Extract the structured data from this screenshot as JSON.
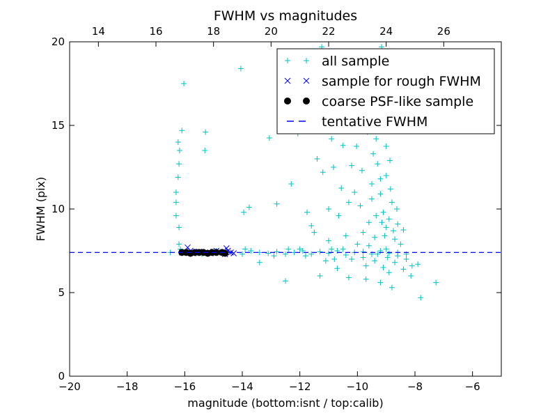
{
  "chart_data": {
    "type": "scatter",
    "title": "FWHM vs magnitudes",
    "xlabel": "magnitude (bottom:isnt / top:calib)",
    "ylabel": "FWHM (pix)",
    "xlim": [
      -20,
      -5
    ],
    "ylim": [
      0,
      20
    ],
    "xticks": [
      "−20",
      "−18",
      "−16",
      "−14",
      "−12",
      "−10",
      "−8",
      "−6"
    ],
    "xtick_values": [
      -20,
      -18,
      -16,
      -14,
      -12,
      -10,
      -8,
      -6
    ],
    "yticks": [
      "0",
      "5",
      "10",
      "15",
      "20"
    ],
    "ytick_values": [
      0,
      5,
      10,
      15,
      20
    ],
    "top_xticks": [
      "14",
      "16",
      "18",
      "20",
      "22",
      "24",
      "26"
    ],
    "top_xtick_values": [
      14,
      16,
      18,
      20,
      22,
      24,
      26
    ],
    "top_axis_offset": 33,
    "grid": false,
    "legend_position": "top-right",
    "tentative_fwhm": 7.4,
    "series": [
      {
        "name": "all sample",
        "marker": "+",
        "color": "#00bfbf",
        "points": [
          [
            -16.03,
            17.5
          ],
          [
            -14.05,
            18.4
          ],
          [
            -15.28,
            14.6
          ],
          [
            -16.1,
            14.7
          ],
          [
            -16.23,
            14.0
          ],
          [
            -16.18,
            13.5
          ],
          [
            -15.3,
            13.5
          ],
          [
            -16.2,
            12.7
          ],
          [
            -16.23,
            11.9
          ],
          [
            -16.3,
            11.0
          ],
          [
            -16.3,
            10.4
          ],
          [
            -16.3,
            9.6
          ],
          [
            -16.2,
            8.9
          ],
          [
            -16.2,
            7.9
          ],
          [
            -16.15,
            7.6
          ],
          [
            -13.06,
            14.25
          ],
          [
            -12.07,
            14.5
          ],
          [
            -12.3,
            11.5
          ],
          [
            -12.8,
            10.3
          ],
          [
            -13.76,
            10.1
          ],
          [
            -13.95,
            9.8
          ],
          [
            -11.75,
            9.8
          ],
          [
            -12.5,
            5.7
          ],
          [
            -11.3,
            6.0
          ],
          [
            -7.8,
            4.7
          ],
          [
            -7.27,
            5.6
          ],
          [
            -13.4,
            6.8
          ],
          [
            -11.24,
            19.7
          ],
          [
            -9.16,
            19.7
          ],
          [
            -9.1,
            18.7
          ],
          [
            -11.2,
            12.2
          ],
          [
            -10.83,
            12.5
          ],
          [
            -10.56,
            11.25
          ],
          [
            -10.3,
            15.0
          ],
          [
            -10.03,
            13.75
          ],
          [
            -9.84,
            12.3
          ],
          [
            -10.3,
            10.4
          ],
          [
            -11.0,
            10.0
          ],
          [
            -10.65,
            9.6
          ],
          [
            -9.6,
            9.2
          ],
          [
            -9.35,
            14.2
          ],
          [
            -9.0,
            13.75
          ],
          [
            -8.87,
            12.9
          ],
          [
            -8.63,
            10.0
          ],
          [
            -8.4,
            8.75
          ],
          [
            -9.2,
            5.6
          ],
          [
            -9.7,
            5.8
          ],
          [
            -10.3,
            5.9
          ],
          [
            -8.14,
            6.0
          ],
          [
            -7.9,
            6.7
          ],
          [
            -10.7,
            6.45
          ],
          [
            -11.5,
            8.6
          ],
          [
            -11.0,
            8.1
          ],
          [
            -10.4,
            8.4
          ],
          [
            -10.1,
            11.0
          ],
          [
            -9.9,
            10.2
          ],
          [
            -9.5,
            11.5
          ],
          [
            -9.3,
            12.7
          ],
          [
            -9.2,
            10.9
          ],
          [
            -9.1,
            9.8
          ],
          [
            -9.0,
            8.9
          ],
          [
            -8.9,
            9.4
          ],
          [
            -8.8,
            10.4
          ],
          [
            -8.7,
            8.2
          ],
          [
            -8.6,
            9.1
          ],
          [
            -8.5,
            7.9
          ],
          [
            -9.4,
            8.3
          ],
          [
            -9.6,
            7.8
          ],
          [
            -9.8,
            8.6
          ],
          [
            -10.0,
            7.9
          ],
          [
            -10.2,
            7.0
          ],
          [
            -9.7,
            6.6
          ],
          [
            -9.4,
            6.9
          ],
          [
            -9.1,
            6.5
          ],
          [
            -8.9,
            6.2
          ],
          [
            -8.7,
            6.8
          ],
          [
            -8.4,
            6.4
          ],
          [
            -8.3,
            7.0
          ],
          [
            -8.1,
            6.6
          ],
          [
            -8.8,
            5.3
          ],
          [
            -9.3,
            7.3
          ],
          [
            -9.0,
            7.6
          ],
          [
            -8.6,
            7.2
          ],
          [
            -9.8,
            7.1
          ],
          [
            -10.5,
            7.6
          ],
          [
            -10.8,
            7.0
          ],
          [
            -11.1,
            6.9
          ],
          [
            -9.5,
            10.6
          ],
          [
            -9.2,
            11.8
          ],
          [
            -9.0,
            12.0
          ],
          [
            -8.85,
            11.2
          ],
          [
            -9.45,
            13.3
          ],
          [
            -9.65,
            14.6
          ],
          [
            -9.25,
            15.3
          ],
          [
            -10.2,
            12.6
          ],
          [
            -10.5,
            13.8
          ],
          [
            -10.9,
            14.2
          ],
          [
            -11.4,
            13.0
          ],
          [
            -11.6,
            9.0
          ],
          [
            -12.0,
            7.6
          ],
          [
            -9.05,
            8.4
          ],
          [
            -8.95,
            7.1
          ],
          [
            -9.15,
            9.2
          ],
          [
            -9.35,
            9.6
          ],
          [
            -8.75,
            8.7
          ],
          [
            -16.5,
            7.4
          ],
          [
            -15.9,
            7.5
          ],
          [
            -15.4,
            7.3
          ],
          [
            -14.9,
            7.5
          ],
          [
            -14.4,
            7.4
          ],
          [
            -14.0,
            7.3
          ],
          [
            -13.7,
            7.5
          ],
          [
            -13.4,
            7.4
          ],
          [
            -13.1,
            7.35
          ],
          [
            -12.8,
            7.45
          ],
          [
            -12.5,
            7.3
          ],
          [
            -12.2,
            7.4
          ],
          [
            -11.9,
            7.5
          ],
          [
            -11.6,
            7.3
          ],
          [
            -11.3,
            7.45
          ],
          [
            -11.0,
            7.35
          ],
          [
            -10.7,
            7.5
          ],
          [
            -10.4,
            7.25
          ],
          [
            -10.1,
            7.4
          ],
          [
            -9.8,
            7.45
          ],
          [
            -9.5,
            7.3
          ],
          [
            -9.2,
            7.5
          ],
          [
            -8.9,
            7.35
          ],
          [
            -8.6,
            7.4
          ],
          [
            -8.3,
            7.3
          ],
          [
            -13.9,
            7.6
          ],
          [
            -12.9,
            7.2
          ],
          [
            -12.4,
            7.6
          ],
          [
            -11.8,
            7.2
          ],
          [
            -10.9,
            7.6
          ]
        ]
      },
      {
        "name": "sample for rough FWHM",
        "marker": "x",
        "color": "#0000ff",
        "points": [
          [
            -16.1,
            7.4
          ],
          [
            -15.9,
            7.7
          ],
          [
            -15.7,
            7.35
          ],
          [
            -15.5,
            7.45
          ],
          [
            -15.3,
            7.4
          ],
          [
            -15.1,
            7.35
          ],
          [
            -14.9,
            7.5
          ],
          [
            -14.7,
            7.4
          ],
          [
            -14.55,
            7.65
          ],
          [
            -14.4,
            7.4
          ],
          [
            -14.3,
            7.35
          ],
          [
            -15.8,
            7.5
          ],
          [
            -15.0,
            7.45
          ],
          [
            -14.6,
            7.3
          ],
          [
            -14.5,
            7.5
          ]
        ]
      },
      {
        "name": "coarse PSF-like sample",
        "marker": "o",
        "color": "#000000",
        "points": [
          [
            -16.1,
            7.4
          ],
          [
            -15.95,
            7.4
          ],
          [
            -15.8,
            7.35
          ],
          [
            -15.65,
            7.4
          ],
          [
            -15.5,
            7.4
          ],
          [
            -15.35,
            7.4
          ],
          [
            -15.2,
            7.35
          ],
          [
            -15.05,
            7.4
          ],
          [
            -14.9,
            7.4
          ],
          [
            -14.7,
            7.4
          ],
          [
            -14.6,
            7.35
          ]
        ]
      },
      {
        "name": "tentative FWHM",
        "marker": "--",
        "color": "#0000ff"
      }
    ]
  }
}
